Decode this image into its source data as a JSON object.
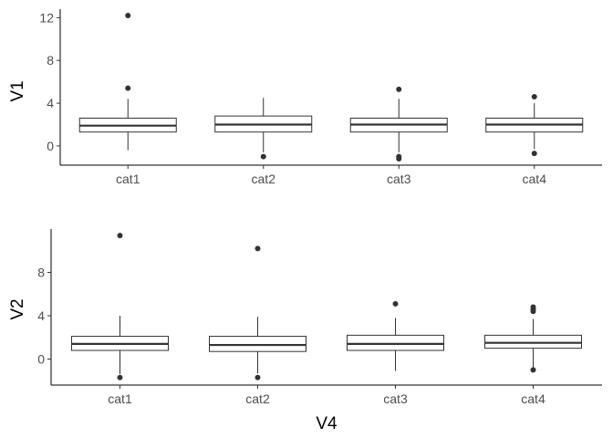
{
  "chart_data": [
    {
      "type": "box",
      "ylabel": "V1",
      "xlabel": "",
      "categories": [
        "cat1",
        "cat2",
        "cat3",
        "cat4"
      ],
      "ylim": [
        -1.8,
        12.8
      ],
      "yticks": [
        0,
        4,
        8,
        12
      ],
      "boxes": [
        {
          "category": "cat1",
          "whisker_low": -0.4,
          "q1": 1.3,
          "median": 1.9,
          "q3": 2.6,
          "whisker_high": 4.4,
          "outliers": [
            5.4,
            12.2
          ]
        },
        {
          "category": "cat2",
          "whisker_low": -0.6,
          "q1": 1.3,
          "median": 2.0,
          "q3": 2.8,
          "whisker_high": 4.5,
          "outliers": [
            -1.0
          ]
        },
        {
          "category": "cat3",
          "whisker_low": -0.6,
          "q1": 1.3,
          "median": 2.0,
          "q3": 2.6,
          "whisker_high": 4.4,
          "outliers": [
            5.3,
            -1.0,
            -1.2
          ]
        },
        {
          "category": "cat4",
          "whisker_low": -0.3,
          "q1": 1.3,
          "median": 2.0,
          "q3": 2.6,
          "whisker_high": 4.0,
          "outliers": [
            4.6,
            -0.7
          ]
        }
      ]
    },
    {
      "type": "box",
      "ylabel": "V2",
      "xlabel": "V4",
      "categories": [
        "cat1",
        "cat2",
        "cat3",
        "cat4"
      ],
      "ylim": [
        -2.4,
        12.0
      ],
      "yticks": [
        0,
        4,
        8
      ],
      "boxes": [
        {
          "category": "cat1",
          "whisker_low": -1.4,
          "q1": 0.8,
          "median": 1.4,
          "q3": 2.1,
          "whisker_high": 4.0,
          "outliers": [
            11.4,
            -1.7
          ]
        },
        {
          "category": "cat2",
          "whisker_low": -1.3,
          "q1": 0.7,
          "median": 1.3,
          "q3": 2.1,
          "whisker_high": 3.9,
          "outliers": [
            10.2,
            -1.7
          ]
        },
        {
          "category": "cat3",
          "whisker_low": -1.1,
          "q1": 0.8,
          "median": 1.4,
          "q3": 2.2,
          "whisker_high": 3.8,
          "outliers": [
            5.1
          ]
        },
        {
          "category": "cat4",
          "whisker_low": -0.8,
          "q1": 1.0,
          "median": 1.5,
          "q3": 2.2,
          "whisker_high": 3.7,
          "outliers": [
            4.4,
            4.6,
            4.8,
            -1.0
          ]
        }
      ]
    }
  ]
}
